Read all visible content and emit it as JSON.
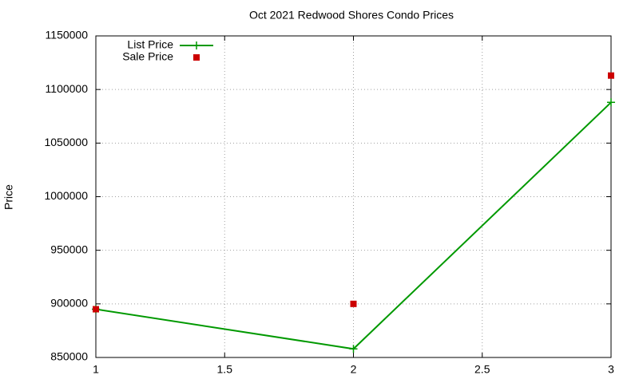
{
  "chart_data": {
    "type": "line",
    "title": "Oct 2021 Redwood Shores Condo Prices",
    "y_label": "Price",
    "x": [
      1,
      2,
      3
    ],
    "series": [
      {
        "name": "List Price",
        "color": "#009900",
        "style": "linespoints",
        "values": [
          895000,
          858000,
          1088000
        ]
      },
      {
        "name": "Sale Price",
        "color": "#cc0000",
        "style": "points",
        "values": [
          895000,
          900000,
          1113000
        ]
      }
    ],
    "xlim": [
      1,
      3
    ],
    "xticks": [
      1,
      1.5,
      2,
      2.5,
      3
    ],
    "ylim": [
      850000,
      1150000
    ],
    "yticks": [
      850000,
      900000,
      950000,
      1000000,
      1050000,
      1100000,
      1150000
    ],
    "grid": true,
    "legend": "top-left"
  }
}
